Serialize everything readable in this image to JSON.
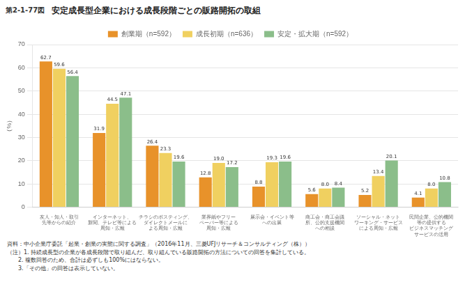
{
  "chart_data": {
    "type": "bar",
    "title": "安定成長型企業における成長段階ごとの販路開拓の取組",
    "annotations": [
      "第2-1-77図",
      "資料：中小企業庁委託「起業・創業の実態に関する調査」（2016年11月、三菱UFJリサーチ＆コンサルティング（株））",
      "（注）1. 持続成長型の企業が各成長段階で取り組んだ、取り組んでいる販路開拓の方法についての回答を集計している。",
      "　　2. 複数回答のため、合計は必ずしも100%にはならない。",
      "　　3.「その他」の回答は表示していない。"
    ],
    "ylabel": "（%）",
    "categories": [
      "友人・知人・取引\n先等からの紹介",
      "インターネット、\n新聞、テレビ等による\n周知・広報",
      "チラシのポスティング、\nダイレクトメールに\nよる周知・広報",
      "業界紙やフリー\nペーパー等による\n周知・広報",
      "展示会・イベント等\nへの出展",
      "商工会・商工会議\n所、公的支援機関\nへの相談",
      "ソーシャル・ネット\nワーキング・サービス\nによる周知・広報",
      "民間企業、公的機関\n等の提供する\nビジネスマッチング\nサービスの活用"
    ],
    "series": [
      {
        "name": "創業期（n=592）",
        "color": "#E8922A",
        "values": [
          62.7,
          31.9,
          26.4,
          12.8,
          8.8,
          5.6,
          5.2,
          4.1
        ]
      },
      {
        "name": "成長初期（n=636）",
        "color": "#F0D060",
        "values": [
          59.6,
          44.5,
          23.3,
          19.0,
          19.3,
          8.0,
          13.4,
          8.0
        ],
        "value_labels": [
          "59.6",
          "44.5",
          "23.3",
          "19.0",
          "19.3",
          "8.0",
          "13.4",
          "8.0"
        ]
      },
      {
        "name": "安定・拡大期（n=592）",
        "color": "#8BBE8A",
        "values": [
          56.4,
          47.1,
          19.6,
          17.2,
          19.6,
          8.4,
          20.1,
          10.8
        ]
      }
    ],
    "ylim": [
      0,
      70
    ],
    "yticks": [
      0,
      10,
      20,
      30,
      40,
      50,
      60,
      70
    ],
    "grid": true,
    "legend": "top",
    "data_labels": true
  }
}
